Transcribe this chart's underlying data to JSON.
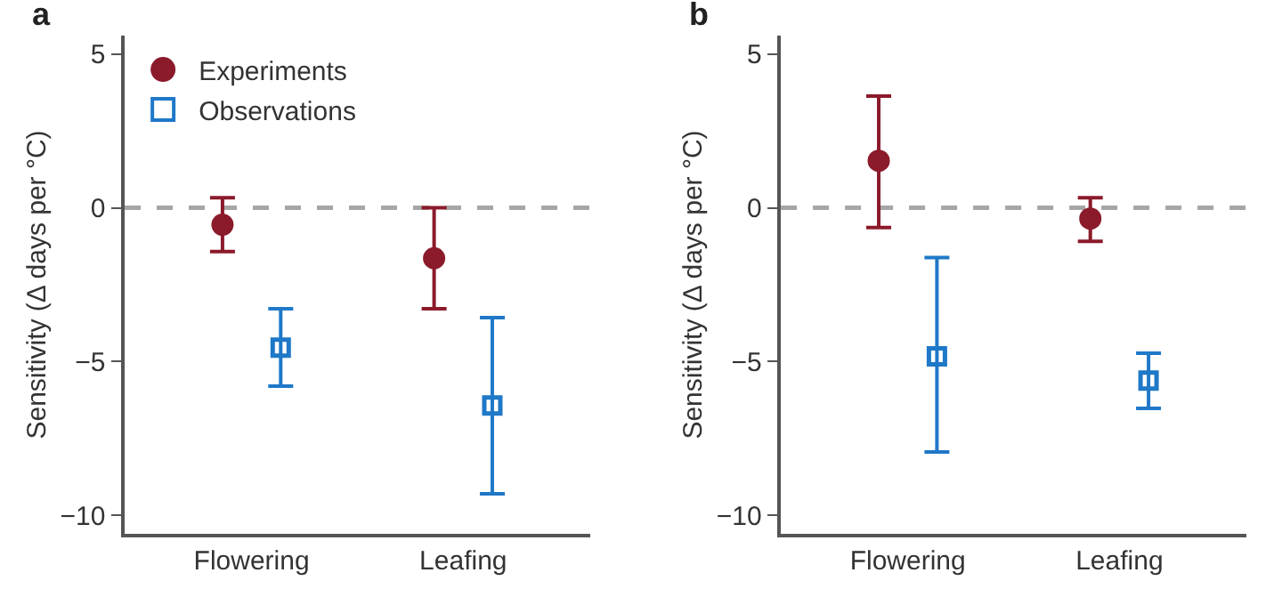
{
  "chart_data": [
    {
      "type": "scatter",
      "title": "a",
      "ylabel": "Sensitivity (Δ days per °C)",
      "categories": [
        "Flowering",
        "Leafing"
      ],
      "series": [
        {
          "name": "Experiments",
          "color": "#8b1a2b",
          "marker": "circle",
          "values": [
            -0.55,
            -1.64
          ],
          "errors": [
            [
              -1.42,
              0.33
            ],
            [
              -3.28,
              0
            ]
          ]
        },
        {
          "name": "Observations",
          "color": "#1f78c8",
          "marker": "square",
          "values": [
            -4.55,
            -6.43
          ],
          "errors": [
            [
              -5.8,
              -3.28
            ],
            [
              -9.3,
              -3.57
            ]
          ]
        }
      ],
      "ylim": [
        -10.6,
        5.6
      ],
      "yticks": [
        -10,
        -5,
        0,
        5
      ],
      "ref_lines": [
        {
          "axis": "y",
          "value": 0,
          "color": "#a6a6a6",
          "line_style": "dashed"
        }
      ],
      "grid": false,
      "legend": "top left"
    },
    {
      "type": "scatter",
      "title": "b",
      "ylabel": "Sensitivity (Δ days per °C)",
      "categories": [
        "Flowering",
        "Leafing"
      ],
      "series": [
        {
          "color": "#8b1a2b",
          "marker": "circle",
          "values": [
            1.53,
            -0.35
          ],
          "errors": [
            [
              -0.64,
              3.63
            ],
            [
              -1.09,
              0.33
            ]
          ]
        },
        {
          "color": "#1f78c8",
          "marker": "square",
          "values": [
            -4.83,
            -5.62
          ],
          "errors": [
            [
              -7.94,
              -1.62
            ],
            [
              -6.52,
              -4.73
            ]
          ]
        }
      ],
      "ylim": [
        -10.6,
        5.6
      ],
      "yticks": [
        -10,
        -5,
        0,
        5
      ],
      "ref_lines": [
        {
          "axis": "y",
          "value": 0,
          "color": "#a6a6a6",
          "line_style": "dashed"
        }
      ],
      "grid": false,
      "legend": false
    }
  ]
}
